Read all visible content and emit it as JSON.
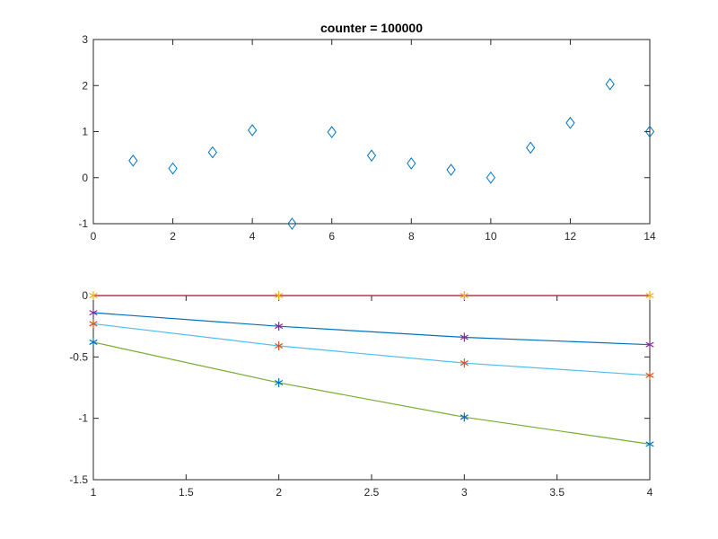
{
  "chart_data": [
    {
      "type": "scatter",
      "title": "counter = 100000",
      "marker": "diamond",
      "color": "#0072BD",
      "xlim": [
        0,
        14
      ],
      "ylim": [
        -1,
        3
      ],
      "xticks": [
        "0",
        "2",
        "4",
        "6",
        "8",
        "10",
        "12",
        "14"
      ],
      "yticks": [
        "-1",
        "0",
        "1",
        "2",
        "3"
      ],
      "x": [
        1,
        2,
        3,
        4,
        5,
        6,
        7,
        8,
        9,
        10,
        11,
        12,
        13,
        14
      ],
      "y": [
        0.37,
        0.2,
        0.55,
        1.03,
        -1.0,
        0.99,
        0.48,
        0.31,
        0.17,
        0.0,
        0.65,
        1.19,
        2.03,
        1.0
      ]
    },
    {
      "type": "line",
      "xlim": [
        1,
        4
      ],
      "ylim": [
        -1.5,
        0
      ],
      "xticks": [
        "1",
        "1.5",
        "2",
        "2.5",
        "3",
        "3.5",
        "4"
      ],
      "yticks": [
        "-1.5",
        "-1",
        "-0.5",
        "0"
      ],
      "x": [
        1,
        2,
        3,
        4
      ],
      "series": [
        {
          "values": [
            0,
            0,
            0,
            0
          ],
          "line_color": "#A2142F",
          "marker_color": "#EDB120"
        },
        {
          "values": [
            -0.14,
            -0.25,
            -0.34,
            -0.4
          ],
          "line_color": "#0072BD",
          "marker_color": "#7E2F8E"
        },
        {
          "values": [
            -0.23,
            -0.41,
            -0.55,
            -0.65
          ],
          "line_color": "#4DBEEE",
          "marker_color": "#D95319"
        },
        {
          "values": [
            -0.38,
            -0.71,
            -0.99,
            -1.21
          ],
          "line_color": "#77AC30",
          "marker_color": "#0072BD"
        }
      ]
    }
  ]
}
